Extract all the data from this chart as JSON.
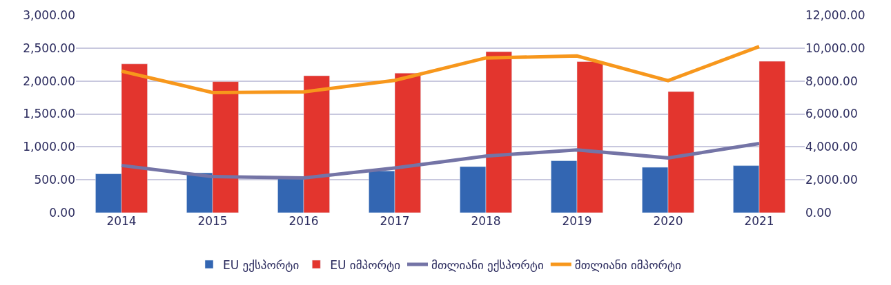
{
  "chart_data": {
    "type": "bar",
    "categories": [
      "2014",
      "2015",
      "2016",
      "2017",
      "2018",
      "2019",
      "2020",
      "2021"
    ],
    "series": [
      {
        "name": "EU ექსპორტი",
        "color": "#3366b2",
        "values": [
          590,
          605,
          545,
          635,
          700,
          790,
          690,
          715
        ]
      },
      {
        "name": "EU იმპორტი",
        "color": "#e3352e",
        "values": [
          2260,
          1990,
          2080,
          2120,
          2445,
          2295,
          1840,
          2300
        ]
      },
      {
        "name": "მთლიანი ექსპორტი",
        "type": "line",
        "axis": "y2",
        "color": "#7474a6",
        "values": [
          2870,
          2190,
          2110,
          2720,
          3440,
          3820,
          3330,
          4200
        ]
      },
      {
        "name": "მთლიანი იმპორტი",
        "type": "line",
        "axis": "y2",
        "color": "#f7971c",
        "values": [
          8600,
          7300,
          7340,
          8040,
          9400,
          9520,
          8020,
          10090
        ]
      }
    ],
    "ylim": [
      0,
      3000
    ],
    "yticks": [
      {
        "value": 0,
        "label": "0.00"
      },
      {
        "value": 500,
        "label": "500.00"
      },
      {
        "value": 1000,
        "label": "1,000.00"
      },
      {
        "value": 1500,
        "label": "1,500.00"
      },
      {
        "value": 2000,
        "label": "2,000.00"
      },
      {
        "value": 2500,
        "label": "2,500.00"
      },
      {
        "value": 3000,
        "label": "3,000.00"
      }
    ],
    "y2lim": [
      0,
      12000
    ],
    "y2ticks": [
      {
        "value": 0,
        "label": "0.00"
      },
      {
        "value": 2000,
        "label": "2,000.00"
      },
      {
        "value": 4000,
        "label": "4,000.00"
      },
      {
        "value": 6000,
        "label": "6,000.00"
      },
      {
        "value": 8000,
        "label": "8,000.00"
      },
      {
        "value": 10000,
        "label": "10,000.00"
      },
      {
        "value": 12000,
        "label": "12,000.00"
      }
    ],
    "grid": "y",
    "legend": "bottom",
    "marker": "none",
    "line_style": "solid"
  }
}
